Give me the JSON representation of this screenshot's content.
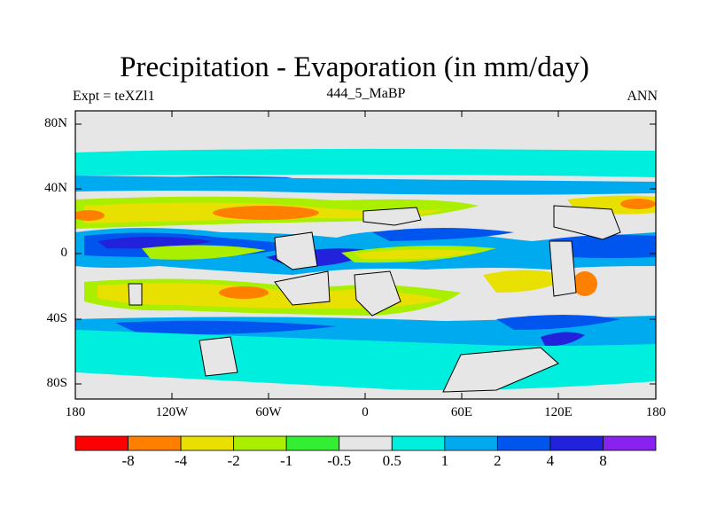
{
  "header": {
    "title": "Precipitation - Evaporation (in mm/day)",
    "left": "Expt = teXZl1",
    "center": "444_5_MaBP",
    "right": "ANN"
  },
  "axes": {
    "lat_labels": [
      "80N",
      "40N",
      "0",
      "40S",
      "80S"
    ],
    "lon_labels": [
      "180",
      "120W",
      "60W",
      "0",
      "60E",
      "120E",
      "180"
    ]
  },
  "colorbar": {
    "labels": [
      "-8",
      "-4",
      "-2",
      "-1",
      "-0.5",
      "0.5",
      "1",
      "2",
      "4",
      "8"
    ],
    "colors": [
      "#ff0000",
      "#ff7f00",
      "#e8e000",
      "#aaee00",
      "#33ee33",
      "#e6e6e6",
      "#00eedd",
      "#00aaee",
      "#0055ee",
      "#2222dd",
      "#8822ee"
    ]
  },
  "palette": {
    "neutral": "#e6e6e6",
    "cyan": "#00eedd",
    "lightblue": "#00aaee",
    "blue": "#0055ee",
    "darkblue": "#2222dd",
    "green": "#33ee33",
    "lightgreen": "#aaee00",
    "yellow": "#e8e000",
    "orange": "#ff7f00",
    "red": "#ff0000",
    "violet": "#8822ee"
  }
}
